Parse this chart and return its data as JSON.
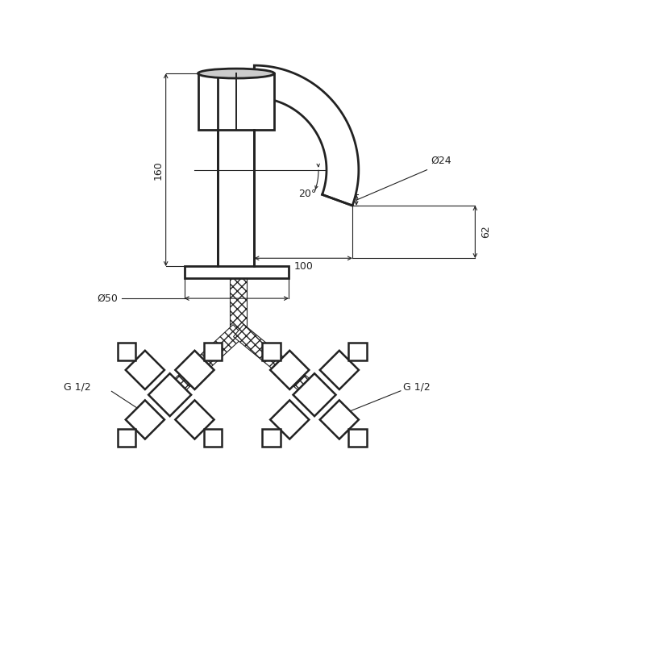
{
  "bg_color": "#ffffff",
  "line_color": "#222222",
  "fig_width": 8.0,
  "fig_height": 8.0,
  "dim_160": "160",
  "dim_24": "Ø24",
  "dim_20": "20°",
  "dim_100": "100",
  "dim_62": "62",
  "dim_50": "Ø50",
  "label_g12_left": "G 1/2",
  "label_g12_right": "G 1/2",
  "lw_body": 2.0,
  "lw_dim": 0.8,
  "fontsize": 9
}
